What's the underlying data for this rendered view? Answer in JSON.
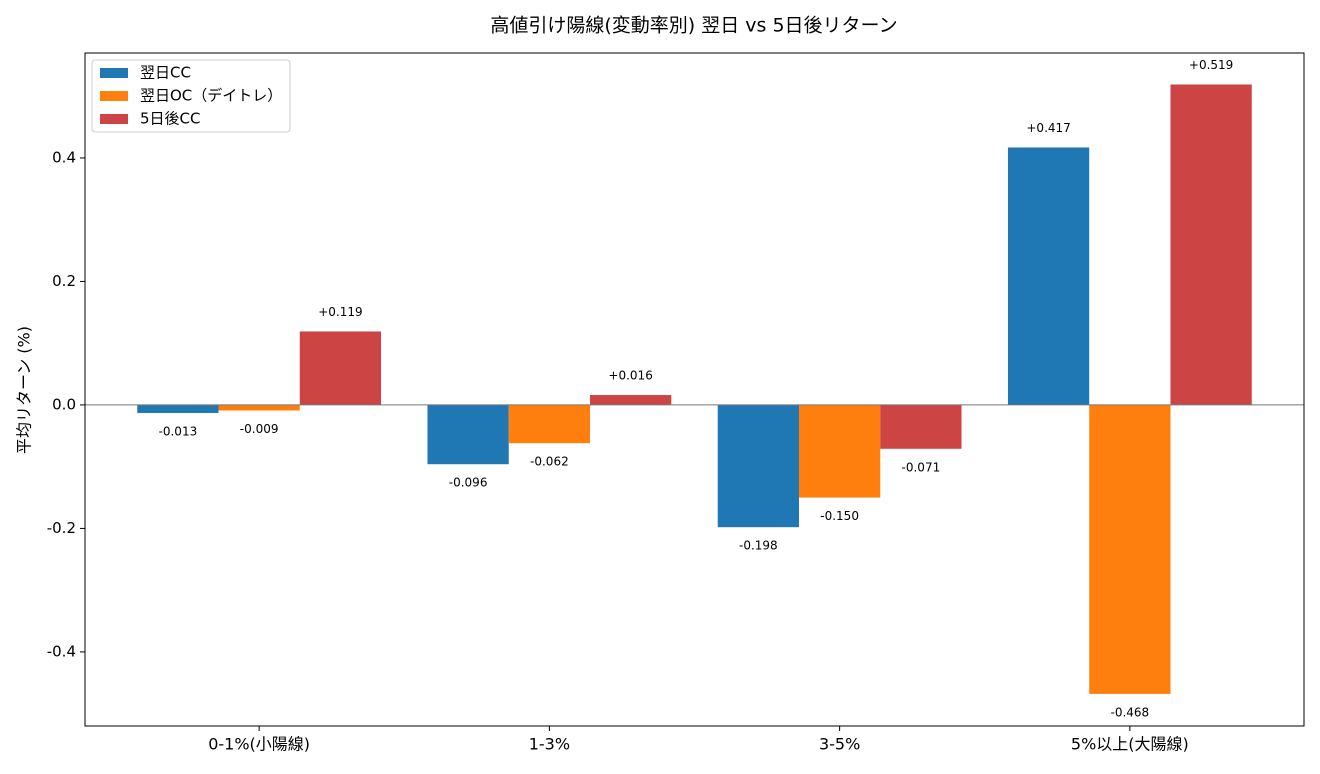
{
  "chart_data": {
    "type": "bar",
    "title": "高値引け陽線(変動率別) 翌日 vs 5日後リターン",
    "ylabel": "平均リターン (%)",
    "categories": [
      "0-1%(小陽線)",
      "1-3%",
      "3-5%",
      "5%以上(大陽線)"
    ],
    "series": [
      {
        "name": "翌日CC",
        "color": "#1f77b4",
        "values": [
          -0.013,
          -0.096,
          -0.198,
          0.417
        ],
        "value_labels": [
          "-0.013",
          "-0.096",
          "-0.198",
          "+0.417"
        ]
      },
      {
        "name": "翌日OC（デイトレ）",
        "color": "#ff7f0e",
        "values": [
          -0.009,
          -0.062,
          -0.15,
          -0.468
        ],
        "value_labels": [
          "-0.009",
          "-0.062",
          "-0.150",
          "-0.468"
        ]
      },
      {
        "name": "5日後CC",
        "color": "#cc4444",
        "values": [
          0.119,
          0.016,
          -0.071,
          0.519
        ],
        "value_labels": [
          "+0.119",
          "+0.016",
          "-0.071",
          "+0.519"
        ]
      }
    ],
    "ylim": [
      -0.52,
      0.57
    ],
    "yticks": [
      -0.4,
      -0.2,
      {
        "value": 0,
        "label": "0.0"
      },
      0.2,
      0.4
    ],
    "legend": "upper left"
  }
}
